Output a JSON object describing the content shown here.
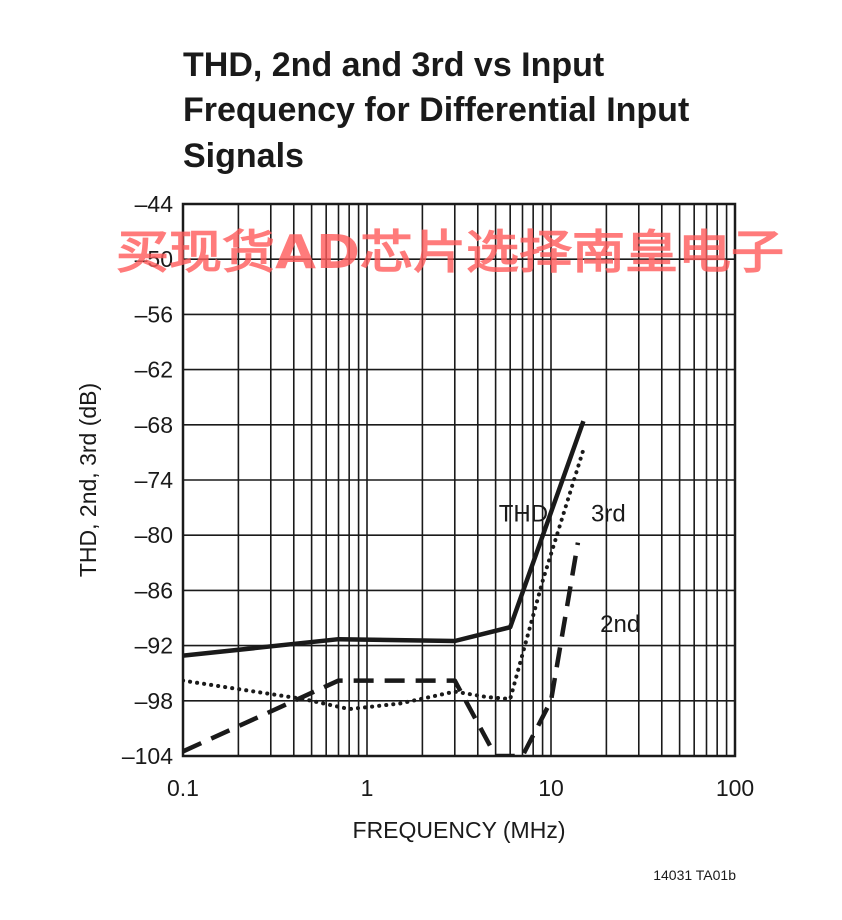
{
  "watermark": "买现货AD芯片选择南皇电子",
  "figure_id": "14031 TA01b",
  "chart_data": {
    "type": "line",
    "title_lines": [
      "THD, 2nd and 3rd vs Input",
      "Frequency for Differential Input",
      "Signals"
    ],
    "xlabel": "FREQUENCY (MHz)",
    "ylabel": "THD, 2nd, 3rd (dB)",
    "x_scale": "log",
    "xlim": [
      0.1,
      100
    ],
    "ylim": [
      -104,
      -44
    ],
    "x_ticks": [
      0.1,
      1,
      10,
      100
    ],
    "x_tick_labels": [
      "0.1",
      "1",
      "10",
      "100"
    ],
    "y_ticks": [
      -44,
      -50,
      -56,
      -62,
      -68,
      -74,
      -80,
      -86,
      -92,
      -98,
      -104
    ],
    "y_tick_labels": [
      "–44",
      "–50",
      "–56",
      "–62",
      "–68",
      "–74",
      "–80",
      "–86",
      "–92",
      "–98",
      "–104"
    ],
    "grid": true,
    "series": [
      {
        "name": "THD",
        "style": "solid",
        "x": [
          0.1,
          0.7,
          3,
          6,
          15
        ],
        "y": [
          -93.1,
          -91.3,
          -91.5,
          -90,
          -67.6
        ]
      },
      {
        "name": "3rd",
        "style": "dotted",
        "x": [
          0.1,
          0.45,
          0.8,
          1.5,
          3,
          4.5,
          6,
          9,
          15
        ],
        "y": [
          -95.8,
          -97.8,
          -98.9,
          -98.3,
          -97,
          -97.6,
          -97.8,
          -85,
          -70.7
        ]
      },
      {
        "name": "2nd",
        "style": "dashed",
        "x": [
          0.1,
          0.7,
          3,
          5,
          7,
          10,
          14
        ],
        "y": [
          -103.5,
          -95.8,
          -95.8,
          -104,
          -104,
          -98,
          -80.8
        ]
      }
    ],
    "annotations": [
      {
        "text": "THD",
        "x": 5.2,
        "y": -78.5
      },
      {
        "text": "3rd",
        "x": 16.5,
        "y": -78.5
      },
      {
        "text": "2nd",
        "x": 18.5,
        "y": -90.5
      }
    ]
  }
}
